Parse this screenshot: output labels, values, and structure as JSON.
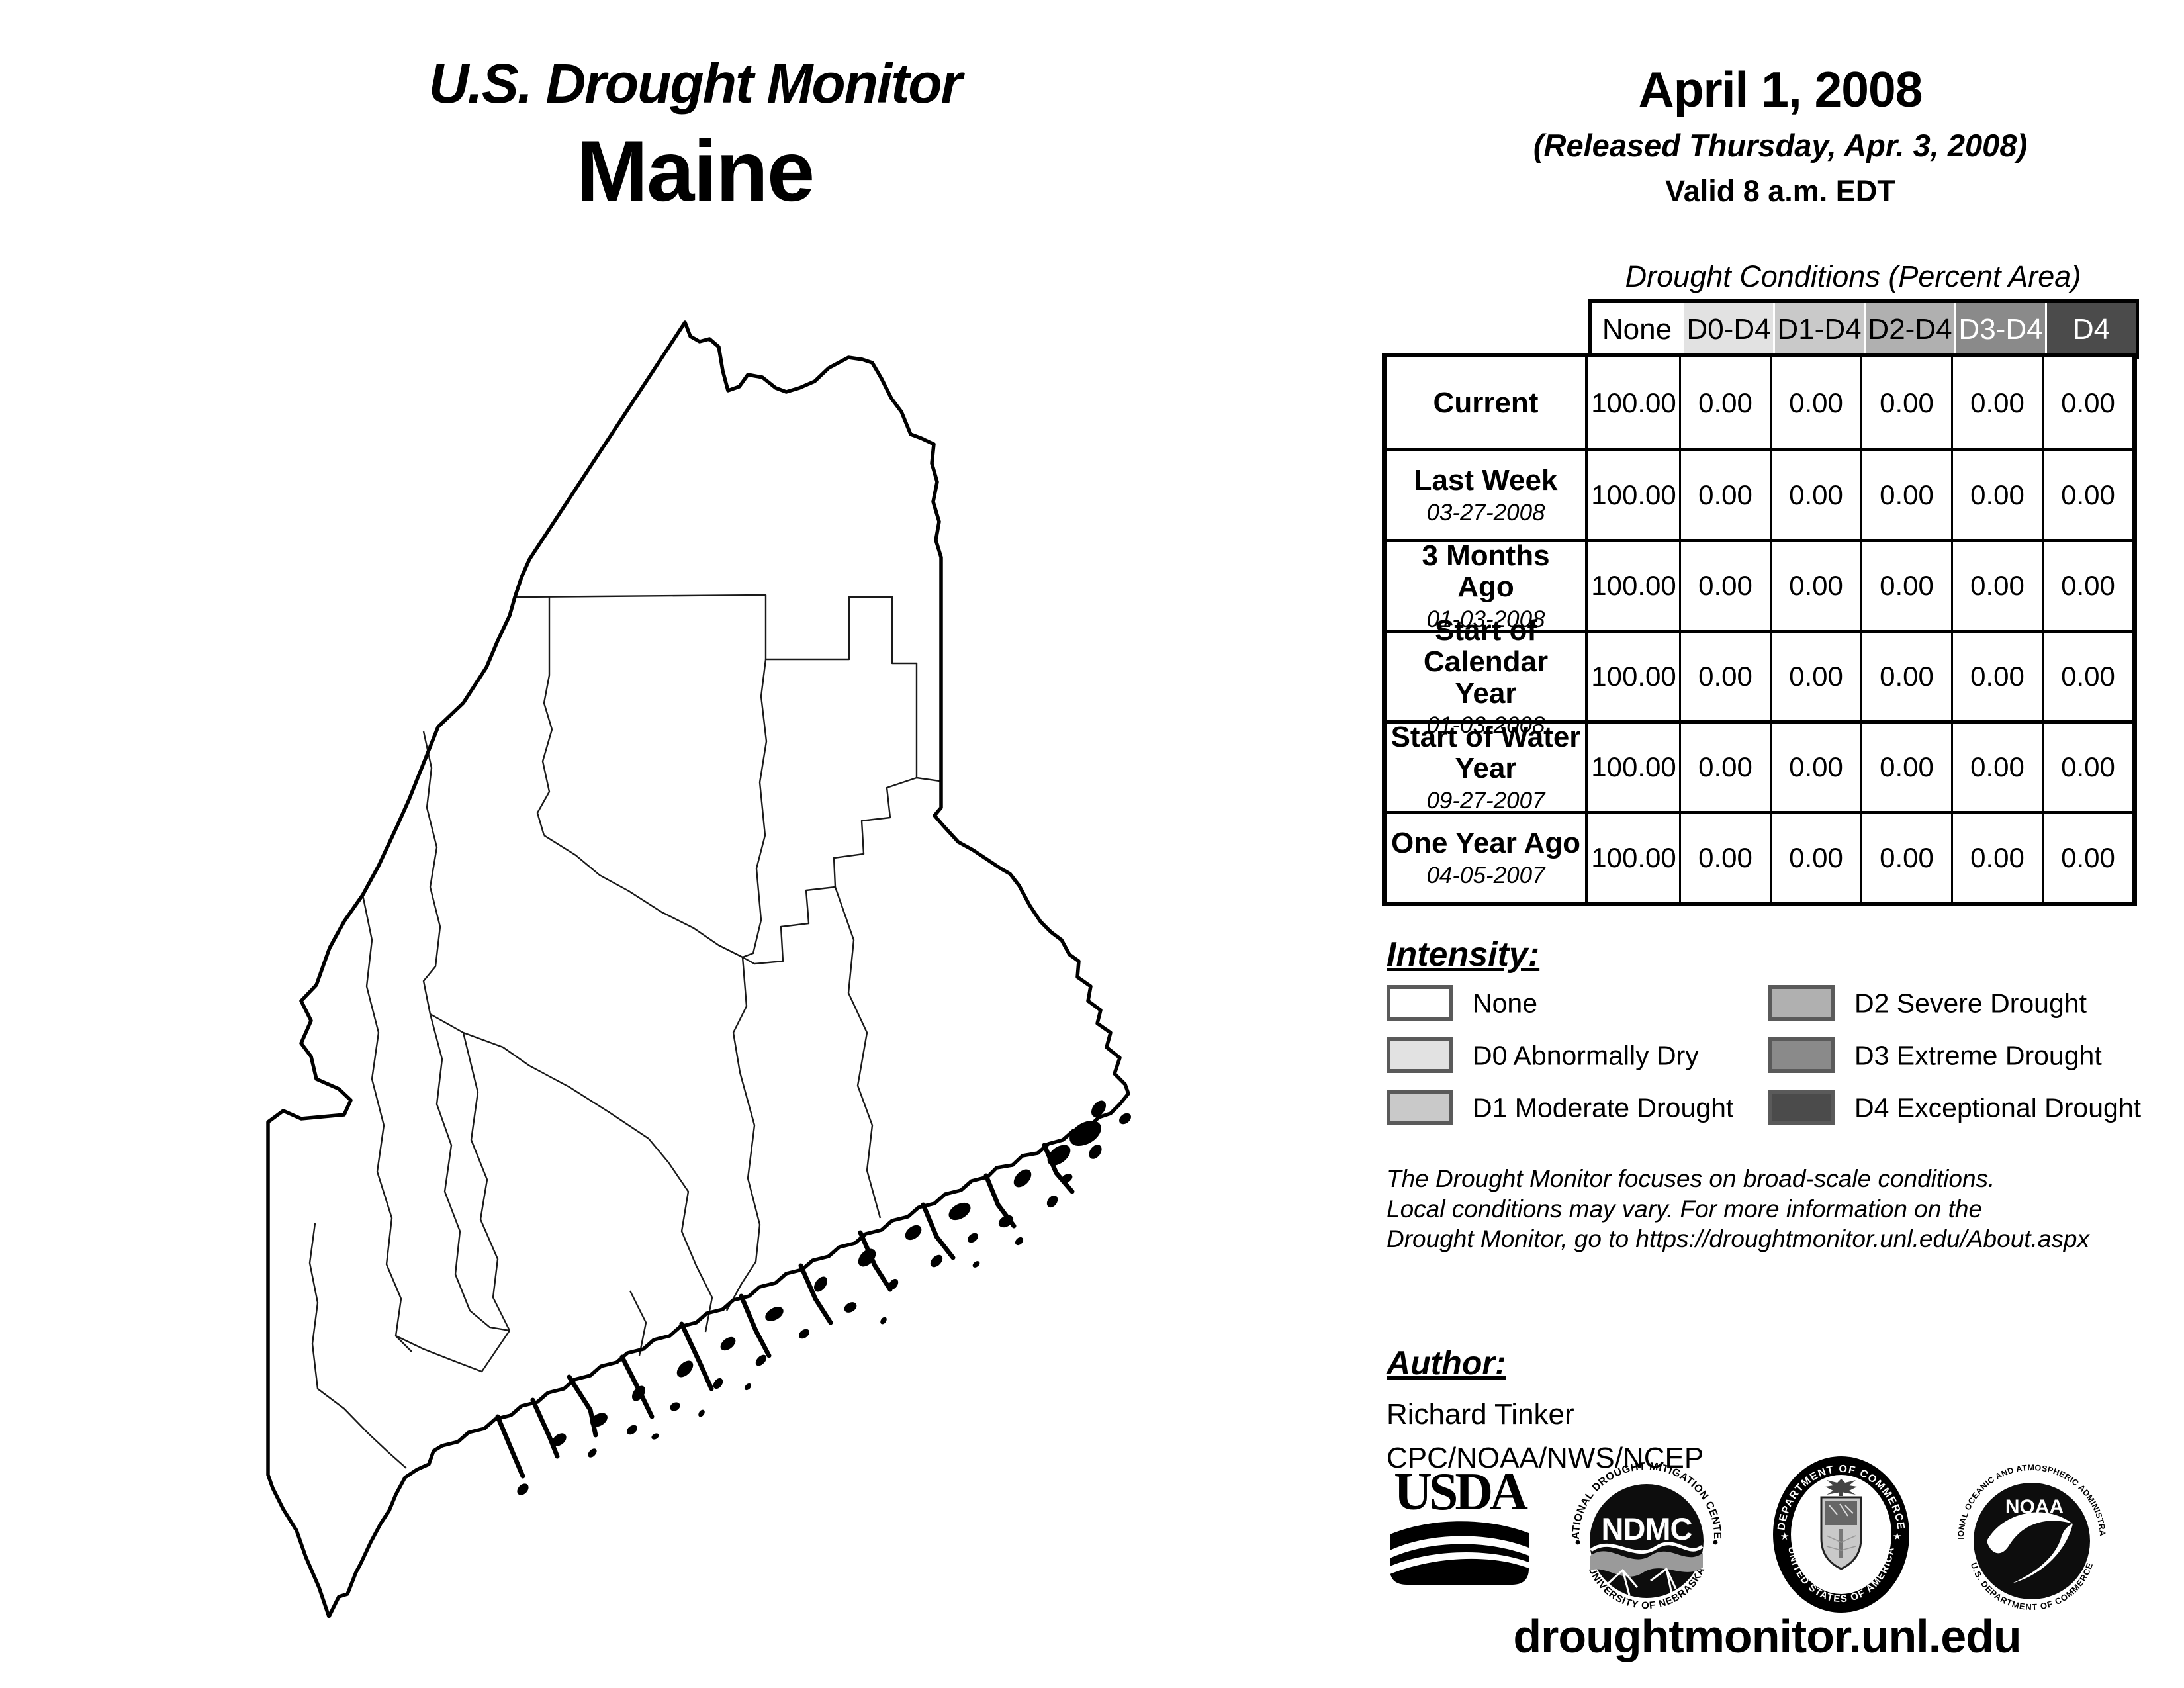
{
  "page_title": {
    "line1": "U.S. Drought Monitor",
    "line2": "Maine"
  },
  "date_block": {
    "date": "April 1, 2008",
    "released": "(Released Thursday, Apr. 3, 2008)",
    "valid": "Valid 8 a.m. EDT"
  },
  "table": {
    "caption": "Drought Conditions (Percent Area)",
    "columns": [
      "None",
      "D0-D4",
      "D1-D4",
      "D2-D4",
      "D3-D4",
      "D4"
    ],
    "header_bg": [
      "#ffffff",
      "#e2e2e2",
      "#c9c9c9",
      "#b0b0b0",
      "#8a8a8a",
      "#4b4b4b"
    ],
    "header_fg": [
      "#000000",
      "#000000",
      "#000000",
      "#000000",
      "#ffffff",
      "#ffffff"
    ],
    "rows": [
      {
        "label": "Current",
        "date": "",
        "values": [
          "100.00",
          "0.00",
          "0.00",
          "0.00",
          "0.00",
          "0.00"
        ]
      },
      {
        "label": "Last Week",
        "date": "03-27-2008",
        "values": [
          "100.00",
          "0.00",
          "0.00",
          "0.00",
          "0.00",
          "0.00"
        ]
      },
      {
        "label": "3 Months Ago",
        "date": "01-03-2008",
        "values": [
          "100.00",
          "0.00",
          "0.00",
          "0.00",
          "0.00",
          "0.00"
        ]
      },
      {
        "label": "Start of Calendar Year",
        "date": "01-03-2008",
        "values": [
          "100.00",
          "0.00",
          "0.00",
          "0.00",
          "0.00",
          "0.00"
        ]
      },
      {
        "label": "Start of Water Year",
        "date": "09-27-2007",
        "values": [
          "100.00",
          "0.00",
          "0.00",
          "0.00",
          "0.00",
          "0.00"
        ]
      },
      {
        "label": "One Year Ago",
        "date": "04-05-2007",
        "values": [
          "100.00",
          "0.00",
          "0.00",
          "0.00",
          "0.00",
          "0.00"
        ]
      }
    ]
  },
  "chart_data": {
    "type": "table",
    "title": "Drought Conditions (Percent Area)",
    "categories": [
      "None",
      "D0-D4",
      "D1-D4",
      "D2-D4",
      "D3-D4",
      "D4"
    ],
    "series": [
      {
        "name": "Current",
        "values": [
          100.0,
          0.0,
          0.0,
          0.0,
          0.0,
          0.0
        ]
      },
      {
        "name": "Last Week 03-27-2008",
        "values": [
          100.0,
          0.0,
          0.0,
          0.0,
          0.0,
          0.0
        ]
      },
      {
        "name": "3 Months Ago 01-03-2008",
        "values": [
          100.0,
          0.0,
          0.0,
          0.0,
          0.0,
          0.0
        ]
      },
      {
        "name": "Start of Calendar Year 01-03-2008",
        "values": [
          100.0,
          0.0,
          0.0,
          0.0,
          0.0,
          0.0
        ]
      },
      {
        "name": "Start of Water Year 09-27-2007",
        "values": [
          100.0,
          0.0,
          0.0,
          0.0,
          0.0,
          0.0
        ]
      },
      {
        "name": "One Year Ago 04-05-2007",
        "values": [
          100.0,
          0.0,
          0.0,
          0.0,
          0.0,
          0.0
        ]
      }
    ]
  },
  "intensity": {
    "heading": "Intensity:",
    "items": [
      {
        "label": "None",
        "color": "#ffffff"
      },
      {
        "label": "D0 Abnormally Dry",
        "color": "#e2e2e2"
      },
      {
        "label": "D1 Moderate Drought",
        "color": "#c9c9c9"
      },
      {
        "label": "D2 Severe Drought",
        "color": "#b0b0b0"
      },
      {
        "label": "D3 Extreme Drought",
        "color": "#8a8a8a"
      },
      {
        "label": "D4 Exceptional Drought",
        "color": "#4b4b4b"
      }
    ]
  },
  "disclaimer": {
    "line1": "The Drought Monitor focuses on broad-scale conditions.",
    "line2": "Local conditions may vary. For more information on the",
    "line3": "Drought Monitor, go to https://droughtmonitor.unl.edu/About.aspx"
  },
  "author": {
    "heading": "Author:",
    "name": "Richard Tinker",
    "org": "CPC/NOAA/NWS/NCEP"
  },
  "logos": {
    "usda": {
      "text": "USDA"
    },
    "ndmc": {
      "center": "NDMC",
      "arc_top": "NATIONAL DROUGHT MITIGATION CENTER",
      "arc_bottom": "UNIVERSITY OF NEBRASKA"
    },
    "doc": {
      "arc_top": "DEPARTMENT OF COMMERCE",
      "arc_bottom": "UNITED STATES OF AMERICA"
    },
    "noaa": {
      "center": "NOAA",
      "arc_top": "NATIONAL OCEANIC AND ATMOSPHERIC ADMINISTRATION",
      "arc_bottom": "U.S. DEPARTMENT OF COMMERCE"
    }
  },
  "footer_url": "droughtmonitor.unl.edu",
  "map": {
    "region": "Maine",
    "outline_color": "#000000",
    "county_line_color": "#1a1a1a"
  }
}
